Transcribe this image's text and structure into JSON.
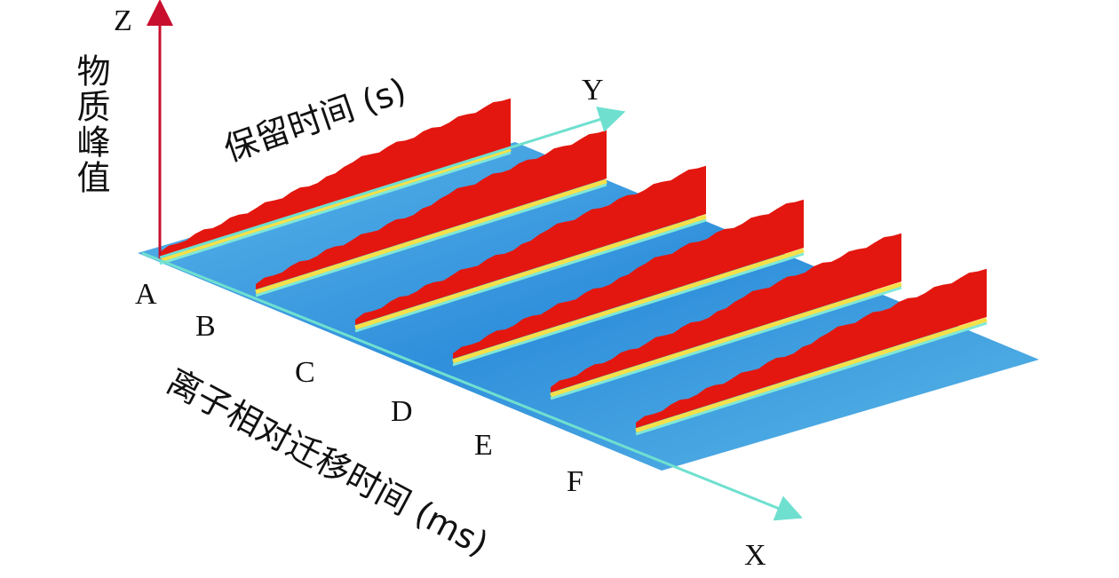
{
  "axes": {
    "z": {
      "label": "Z",
      "title": "物质峰值"
    },
    "y": {
      "label": "Y",
      "title": "保留时间 (s)"
    },
    "x": {
      "label": "X",
      "title": "离子相对迁移时间 (ms)"
    }
  },
  "samples": [
    "A",
    "B",
    "C",
    "D",
    "E",
    "F"
  ]
}
